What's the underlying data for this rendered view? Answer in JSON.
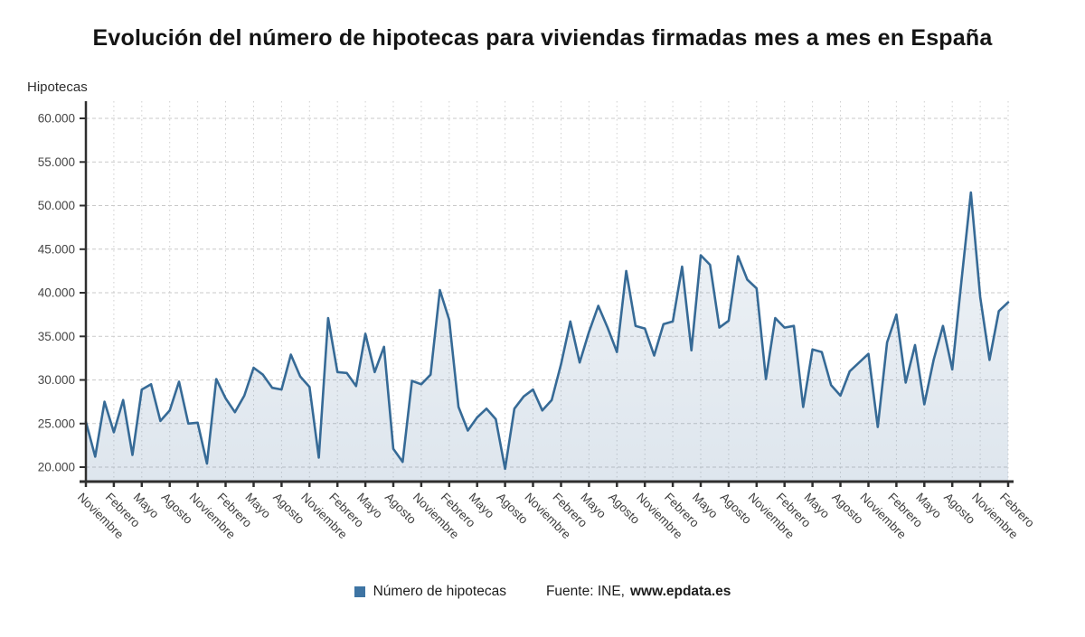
{
  "title": "Evolución del número de hipotecas para viviendas firmadas mes a mes en España",
  "axis_title": "Hipotecas",
  "legend": {
    "label": "Número de hipotecas"
  },
  "source": {
    "prefix": "Fuente: INE,",
    "bold": "www.epdata.es"
  },
  "chart_data": {
    "type": "area",
    "title": "Evolución del número de hipotecas para viviendas firmadas mes a mes en España",
    "ylabel": "Hipotecas",
    "ylim": [
      20000,
      60000
    ],
    "grid": true,
    "legend_position": "bottom",
    "y_ticks": [
      {
        "value": 20000,
        "label": "20.000"
      },
      {
        "value": 25000,
        "label": "25.000"
      },
      {
        "value": 30000,
        "label": "30.000"
      },
      {
        "value": 35000,
        "label": "35.000"
      },
      {
        "value": 40000,
        "label": "40.000"
      },
      {
        "value": 45000,
        "label": "45.000"
      },
      {
        "value": 50000,
        "label": "50.000"
      },
      {
        "value": 55000,
        "label": "55.000"
      },
      {
        "value": 60000,
        "label": "60.000"
      }
    ],
    "x_tick_every": 3,
    "x_tick_labels": [
      "Noviembre",
      "Febrero",
      "Mayo",
      "Agosto",
      "Noviembre",
      "Febrero",
      "Mayo",
      "Agosto",
      "Noviembre",
      "Febrero",
      "Mayo",
      "Agosto",
      "Noviembre",
      "Febrero",
      "Mayo",
      "Agosto",
      "Noviembre",
      "Febrero",
      "Mayo",
      "Agosto",
      "Noviembre",
      "Febrero",
      "Mayo",
      "Agosto",
      "Noviembre",
      "Febrero",
      "Mayo",
      "Agosto",
      "Noviembre",
      "Febrero",
      "Mayo",
      "Agosto",
      "Noviembre",
      "Febrero"
    ],
    "series": [
      {
        "name": "Número de hipotecas",
        "values": [
          25200,
          21200,
          27500,
          24000,
          27700,
          21400,
          28900,
          29500,
          25300,
          26500,
          29800,
          25000,
          25100,
          20400,
          30100,
          27900,
          26300,
          28200,
          31400,
          30600,
          29100,
          28900,
          32900,
          30400,
          29200,
          21100,
          37100,
          30900,
          30800,
          29300,
          35300,
          30900,
          33800,
          22100,
          20600,
          29900,
          29500,
          30600,
          40300,
          36900,
          26900,
          24200,
          25700,
          26700,
          25500,
          19800,
          26700,
          28100,
          28900,
          26500,
          27700,
          31800,
          36700,
          32000,
          35500,
          38500,
          36000,
          33200,
          42500,
          36200,
          35900,
          32800,
          36400,
          36700,
          43000,
          33400,
          44300,
          43200,
          36000,
          36800,
          44200,
          41500,
          40500,
          30100,
          37100,
          36000,
          36200,
          26900,
          33500,
          33200,
          29400,
          28200,
          31000,
          32000,
          33000,
          24600,
          34300,
          37500,
          29700,
          34000,
          27200,
          32300,
          36200,
          31200,
          41500,
          51500,
          39500,
          32300,
          37900,
          38900
        ]
      }
    ],
    "colors": {
      "line": "#366a96",
      "area_top": "rgba(105,140,175,0.10)",
      "area_bottom": "rgba(105,140,175,0.22)",
      "legend_square": "#3e74a3",
      "grid": "#c9c9c9",
      "axis": "#2f2f2f",
      "tick_text": "#3f3f3f"
    }
  }
}
